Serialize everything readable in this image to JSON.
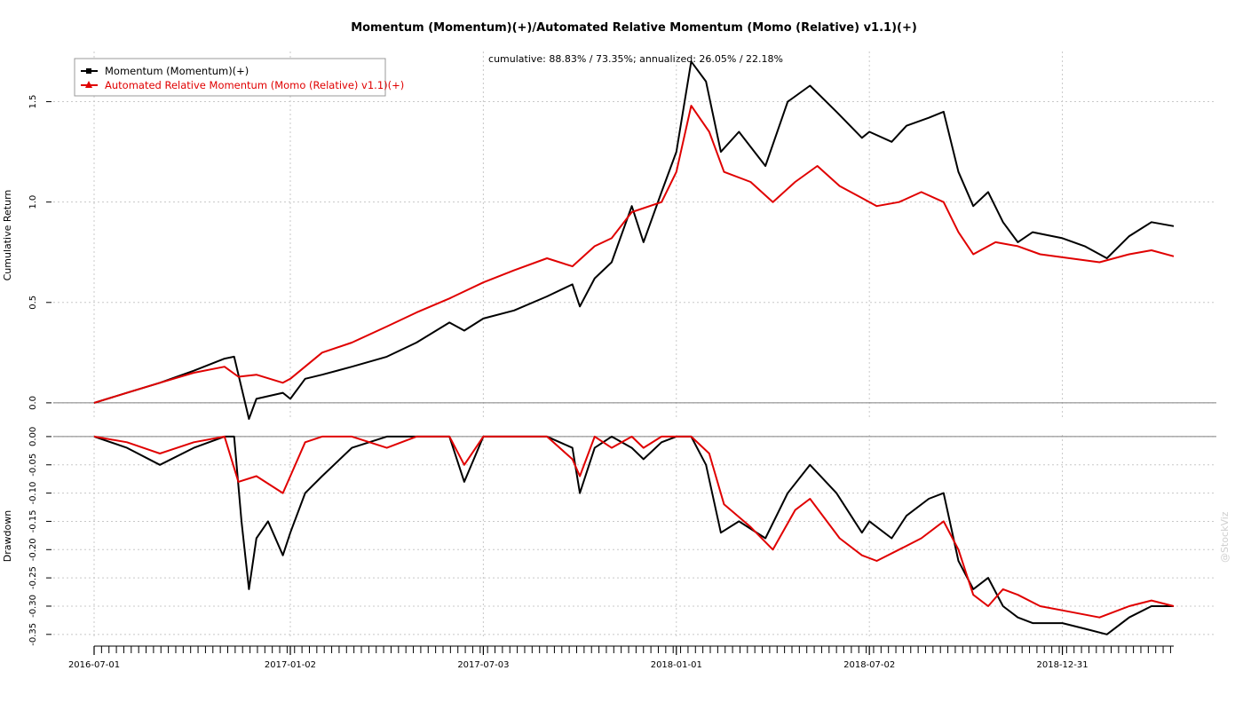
{
  "chart_data": {
    "type": "line",
    "title": "Momentum (Momentum)(+)/Automated Relative Momentum (Momo (Relative) v1.1)(+)",
    "subtitle": "cumulative: 88.83% / 73.35%; annualized: 26.05% / 22.18%",
    "watermark": "@StockViz",
    "colors": {
      "s1": "#000000",
      "s2": "#e00000"
    },
    "x_ticks": [
      "2016-07-01",
      "2017-01-02",
      "2017-07-03",
      "2018-01-01",
      "2018-07-02",
      "2018-12-31"
    ],
    "panels": [
      {
        "name": "cumulative",
        "ylabel": "Cumulative Return",
        "ylim": [
          -0.08,
          1.75
        ],
        "yticks": [
          "0.0",
          "0.5",
          "1.0",
          "1.5"
        ],
        "ytick_values": [
          0.0,
          0.5,
          1.0,
          1.5
        ],
        "zero_line": 0.0,
        "series": [
          {
            "name": "Momentum (Momentum)(+)",
            "points": [
              [
                "2016-07-01",
                0.0
              ],
              [
                "2016-08-01",
                0.05
              ],
              [
                "2016-09-01",
                0.1
              ],
              [
                "2016-10-03",
                0.16
              ],
              [
                "2016-11-01",
                0.22
              ],
              [
                "2016-11-10",
                0.23
              ],
              [
                "2016-11-24",
                -0.08
              ],
              [
                "2016-12-01",
                0.02
              ],
              [
                "2016-12-26",
                0.05
              ],
              [
                "2017-01-02",
                0.02
              ],
              [
                "2017-01-16",
                0.12
              ],
              [
                "2017-02-01",
                0.14
              ],
              [
                "2017-03-01",
                0.18
              ],
              [
                "2017-04-03",
                0.23
              ],
              [
                "2017-05-01",
                0.3
              ],
              [
                "2017-06-01",
                0.4
              ],
              [
                "2017-06-15",
                0.36
              ],
              [
                "2017-07-03",
                0.42
              ],
              [
                "2017-08-01",
                0.46
              ],
              [
                "2017-09-01",
                0.53
              ],
              [
                "2017-09-25",
                0.59
              ],
              [
                "2017-10-02",
                0.48
              ],
              [
                "2017-10-16",
                0.62
              ],
              [
                "2017-11-01",
                0.7
              ],
              [
                "2017-11-20",
                0.98
              ],
              [
                "2017-12-01",
                0.8
              ],
              [
                "2017-12-18",
                1.05
              ],
              [
                "2018-01-01",
                1.25
              ],
              [
                "2018-01-15",
                1.7
              ],
              [
                "2018-01-29",
                1.6
              ],
              [
                "2018-02-12",
                1.25
              ],
              [
                "2018-03-01",
                1.35
              ],
              [
                "2018-03-26",
                1.18
              ],
              [
                "2018-04-16",
                1.5
              ],
              [
                "2018-05-07",
                1.58
              ],
              [
                "2018-06-01",
                1.45
              ],
              [
                "2018-06-25",
                1.32
              ],
              [
                "2018-07-02",
                1.35
              ],
              [
                "2018-07-23",
                1.3
              ],
              [
                "2018-08-06",
                1.38
              ],
              [
                "2018-08-27",
                1.42
              ],
              [
                "2018-09-10",
                1.45
              ],
              [
                "2018-09-24",
                1.15
              ],
              [
                "2018-10-08",
                0.98
              ],
              [
                "2018-10-22",
                1.05
              ],
              [
                "2018-11-05",
                0.9
              ],
              [
                "2018-11-19",
                0.8
              ],
              [
                "2018-12-03",
                0.85
              ],
              [
                "2018-12-31",
                0.82
              ],
              [
                "2019-01-21",
                0.78
              ],
              [
                "2019-02-11",
                0.72
              ],
              [
                "2019-03-04",
                0.83
              ],
              [
                "2019-03-25",
                0.9
              ],
              [
                "2019-04-15",
                0.88
              ]
            ]
          },
          {
            "name": "Automated Relative Momentum (Momo (Relative) v1.1)(+)",
            "points": [
              [
                "2016-07-01",
                0.0
              ],
              [
                "2016-08-01",
                0.05
              ],
              [
                "2016-09-01",
                0.1
              ],
              [
                "2016-10-03",
                0.15
              ],
              [
                "2016-11-01",
                0.18
              ],
              [
                "2016-11-14",
                0.13
              ],
              [
                "2016-12-01",
                0.14
              ],
              [
                "2016-12-26",
                0.1
              ],
              [
                "2017-01-02",
                0.12
              ],
              [
                "2017-02-01",
                0.25
              ],
              [
                "2017-03-01",
                0.3
              ],
              [
                "2017-04-03",
                0.38
              ],
              [
                "2017-05-01",
                0.45
              ],
              [
                "2017-06-01",
                0.52
              ],
              [
                "2017-07-03",
                0.6
              ],
              [
                "2017-08-01",
                0.66
              ],
              [
                "2017-09-01",
                0.72
              ],
              [
                "2017-09-25",
                0.68
              ],
              [
                "2017-10-16",
                0.78
              ],
              [
                "2017-11-01",
                0.82
              ],
              [
                "2017-11-20",
                0.95
              ],
              [
                "2017-12-18",
                1.0
              ],
              [
                "2018-01-01",
                1.15
              ],
              [
                "2018-01-15",
                1.48
              ],
              [
                "2018-02-01",
                1.35
              ],
              [
                "2018-02-15",
                1.15
              ],
              [
                "2018-03-12",
                1.1
              ],
              [
                "2018-04-02",
                1.0
              ],
              [
                "2018-04-23",
                1.1
              ],
              [
                "2018-05-14",
                1.18
              ],
              [
                "2018-06-04",
                1.08
              ],
              [
                "2018-06-25",
                1.02
              ],
              [
                "2018-07-09",
                0.98
              ],
              [
                "2018-07-30",
                1.0
              ],
              [
                "2018-08-20",
                1.05
              ],
              [
                "2018-09-10",
                1.0
              ],
              [
                "2018-09-24",
                0.85
              ],
              [
                "2018-10-08",
                0.74
              ],
              [
                "2018-10-29",
                0.8
              ],
              [
                "2018-11-19",
                0.78
              ],
              [
                "2018-12-10",
                0.74
              ],
              [
                "2019-01-07",
                0.72
              ],
              [
                "2019-02-04",
                0.7
              ],
              [
                "2019-03-04",
                0.74
              ],
              [
                "2019-03-25",
                0.76
              ],
              [
                "2019-04-15",
                0.73
              ]
            ]
          }
        ]
      },
      {
        "name": "drawdown",
        "ylabel": "Drawdown",
        "ylim": [
          -0.355,
          0.003
        ],
        "yticks": [
          "0.00",
          "-0.05",
          "-0.10",
          "-0.15",
          "-0.20",
          "-0.25",
          "-0.30",
          "-0.35"
        ],
        "ytick_values": [
          0.0,
          -0.05,
          -0.1,
          -0.15,
          -0.2,
          -0.25,
          -0.3,
          -0.35
        ],
        "zero_line": 0.0,
        "series": [
          {
            "name": "Momentum (Momentum)(+)",
            "points": [
              [
                "2016-07-01",
                0.0
              ],
              [
                "2016-08-01",
                -0.02
              ],
              [
                "2016-09-01",
                -0.05
              ],
              [
                "2016-10-03",
                -0.02
              ],
              [
                "2016-11-01",
                0.0
              ],
              [
                "2016-11-10",
                0.0
              ],
              [
                "2016-11-17",
                -0.15
              ],
              [
                "2016-11-24",
                -0.27
              ],
              [
                "2016-12-01",
                -0.18
              ],
              [
                "2016-12-12",
                -0.15
              ],
              [
                "2016-12-26",
                -0.21
              ],
              [
                "2017-01-02",
                -0.17
              ],
              [
                "2017-01-16",
                -0.1
              ],
              [
                "2017-02-01",
                -0.07
              ],
              [
                "2017-03-01",
                -0.02
              ],
              [
                "2017-04-03",
                0.0
              ],
              [
                "2017-05-01",
                0.0
              ],
              [
                "2017-06-01",
                0.0
              ],
              [
                "2017-06-15",
                -0.08
              ],
              [
                "2017-07-03",
                0.0
              ],
              [
                "2017-08-01",
                0.0
              ],
              [
                "2017-09-01",
                0.0
              ],
              [
                "2017-09-25",
                -0.02
              ],
              [
                "2017-10-02",
                -0.1
              ],
              [
                "2017-10-16",
                -0.02
              ],
              [
                "2017-11-01",
                0.0
              ],
              [
                "2017-11-20",
                -0.02
              ],
              [
                "2017-12-01",
                -0.04
              ],
              [
                "2017-12-18",
                -0.01
              ],
              [
                "2018-01-01",
                0.0
              ],
              [
                "2018-01-15",
                0.0
              ],
              [
                "2018-01-29",
                -0.05
              ],
              [
                "2018-02-12",
                -0.17
              ],
              [
                "2018-03-01",
                -0.15
              ],
              [
                "2018-03-26",
                -0.18
              ],
              [
                "2018-04-16",
                -0.1
              ],
              [
                "2018-05-07",
                -0.05
              ],
              [
                "2018-06-01",
                -0.1
              ],
              [
                "2018-06-25",
                -0.17
              ],
              [
                "2018-07-02",
                -0.15
              ],
              [
                "2018-07-23",
                -0.18
              ],
              [
                "2018-08-06",
                -0.14
              ],
              [
                "2018-08-27",
                -0.11
              ],
              [
                "2018-09-10",
                -0.1
              ],
              [
                "2018-09-24",
                -0.22
              ],
              [
                "2018-10-08",
                -0.27
              ],
              [
                "2018-10-22",
                -0.25
              ],
              [
                "2018-11-05",
                -0.3
              ],
              [
                "2018-11-19",
                -0.32
              ],
              [
                "2018-12-03",
                -0.33
              ],
              [
                "2018-12-31",
                -0.33
              ],
              [
                "2019-01-21",
                -0.34
              ],
              [
                "2019-02-11",
                -0.35
              ],
              [
                "2019-03-04",
                -0.32
              ],
              [
                "2019-03-25",
                -0.3
              ],
              [
                "2019-04-15",
                -0.3
              ]
            ]
          },
          {
            "name": "Automated Relative Momentum (Momo (Relative) v1.1)(+)",
            "points": [
              [
                "2016-07-01",
                0.0
              ],
              [
                "2016-08-01",
                -0.01
              ],
              [
                "2016-09-01",
                -0.03
              ],
              [
                "2016-10-03",
                -0.01
              ],
              [
                "2016-11-01",
                0.0
              ],
              [
                "2016-11-14",
                -0.08
              ],
              [
                "2016-12-01",
                -0.07
              ],
              [
                "2016-12-26",
                -0.1
              ],
              [
                "2017-01-02",
                -0.07
              ],
              [
                "2017-01-16",
                -0.01
              ],
              [
                "2017-02-01",
                0.0
              ],
              [
                "2017-03-01",
                0.0
              ],
              [
                "2017-04-03",
                -0.02
              ],
              [
                "2017-05-01",
                0.0
              ],
              [
                "2017-06-01",
                0.0
              ],
              [
                "2017-06-15",
                -0.05
              ],
              [
                "2017-07-03",
                0.0
              ],
              [
                "2017-08-01",
                0.0
              ],
              [
                "2017-09-01",
                0.0
              ],
              [
                "2017-09-25",
                -0.04
              ],
              [
                "2017-10-02",
                -0.07
              ],
              [
                "2017-10-16",
                0.0
              ],
              [
                "2017-11-01",
                -0.02
              ],
              [
                "2017-11-20",
                0.0
              ],
              [
                "2017-12-01",
                -0.02
              ],
              [
                "2017-12-18",
                0.0
              ],
              [
                "2018-01-01",
                0.0
              ],
              [
                "2018-01-15",
                0.0
              ],
              [
                "2018-02-01",
                -0.03
              ],
              [
                "2018-02-15",
                -0.12
              ],
              [
                "2018-03-12",
                -0.16
              ],
              [
                "2018-04-02",
                -0.2
              ],
              [
                "2018-04-23",
                -0.13
              ],
              [
                "2018-05-07",
                -0.11
              ],
              [
                "2018-06-04",
                -0.18
              ],
              [
                "2018-06-25",
                -0.21
              ],
              [
                "2018-07-09",
                -0.22
              ],
              [
                "2018-07-30",
                -0.2
              ],
              [
                "2018-08-20",
                -0.18
              ],
              [
                "2018-09-10",
                -0.15
              ],
              [
                "2018-09-24",
                -0.2
              ],
              [
                "2018-10-08",
                -0.28
              ],
              [
                "2018-10-22",
                -0.3
              ],
              [
                "2018-11-05",
                -0.27
              ],
              [
                "2018-11-19",
                -0.28
              ],
              [
                "2018-12-10",
                -0.3
              ],
              [
                "2019-01-07",
                -0.31
              ],
              [
                "2019-02-04",
                -0.32
              ],
              [
                "2019-03-04",
                -0.3
              ],
              [
                "2019-03-25",
                -0.29
              ],
              [
                "2019-04-15",
                -0.3
              ]
            ]
          }
        ]
      }
    ]
  }
}
